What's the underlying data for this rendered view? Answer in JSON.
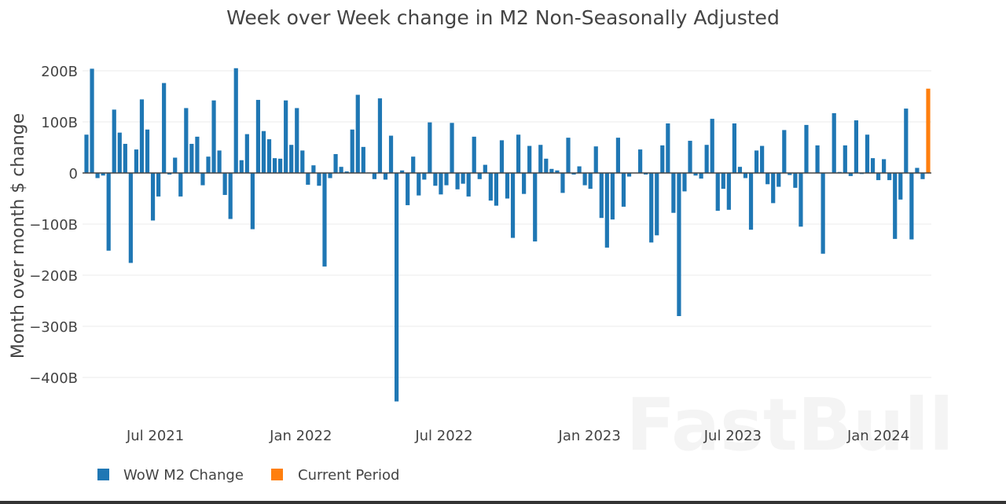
{
  "chart_data": {
    "type": "bar",
    "title": "Week over Week change in M2 Non-Seasonally Adjusted",
    "xlabel": "",
    "ylabel": "Month over month $ change",
    "x_first": "2021-04-05",
    "x_last": "2024-03-04",
    "frequency": "weekly",
    "unit": "B",
    "ylim": [
      -455,
      225
    ],
    "grid": true,
    "legend_position": "bottom-left",
    "y_ticks": [
      {
        "value": 200,
        "label": "200B"
      },
      {
        "value": 100,
        "label": "100B"
      },
      {
        "value": 0,
        "label": "0"
      },
      {
        "value": -100,
        "label": "−100B"
      },
      {
        "value": -200,
        "label": "−200B"
      },
      {
        "value": -300,
        "label": "−300B"
      },
      {
        "value": -400,
        "label": "−400B"
      }
    ],
    "x_ticks": [
      {
        "date": "2021-07-01",
        "label": "Jul 2021"
      },
      {
        "date": "2022-01-01",
        "label": "Jan 2022"
      },
      {
        "date": "2022-07-01",
        "label": "Jul 2022"
      },
      {
        "date": "2023-01-01",
        "label": "Jan 2023"
      },
      {
        "date": "2023-07-01",
        "label": "Jul 2023"
      },
      {
        "date": "2024-01-01",
        "label": "Jan 2024"
      }
    ],
    "series": [
      {
        "name": "WoW M2 Change",
        "color": "#1f77b4",
        "values": [
          75,
          204,
          -10,
          -5,
          -152,
          124,
          79,
          57,
          -176,
          46,
          144,
          85,
          -93,
          -46,
          176,
          -3,
          30,
          -46,
          127,
          57,
          71,
          -24,
          32,
          142,
          44,
          -43,
          -90,
          205,
          25,
          76,
          -110,
          143,
          82,
          66,
          29,
          28,
          142,
          55,
          127,
          44,
          -23,
          15,
          -25,
          -183,
          -10,
          37,
          12,
          3,
          85,
          153,
          51,
          1,
          -12,
          146,
          -13,
          73,
          -447,
          5,
          -63,
          32,
          -44,
          -13,
          99,
          -25,
          -42,
          -24,
          98,
          -32,
          -21,
          -46,
          71,
          -12,
          16,
          -54,
          -64,
          64,
          -50,
          -127,
          75,
          -41,
          53,
          -134,
          55,
          28,
          8,
          5,
          -39,
          69,
          -3,
          13,
          -24,
          -31,
          52,
          -88,
          -146,
          -91,
          69,
          -66,
          -7,
          0,
          46,
          -3,
          -136,
          -122,
          54,
          97,
          -78,
          -280,
          -36,
          63,
          -5,
          -11,
          55,
          106,
          -74,
          -31,
          -72,
          97,
          12,
          -10,
          -111,
          44,
          53,
          -22,
          -59,
          -27,
          84,
          -4,
          -29,
          -105,
          94,
          0,
          54,
          -158,
          0,
          117,
          2,
          54,
          -6,
          103,
          -2,
          75,
          29,
          -14,
          27,
          -14,
          -129,
          -52,
          126,
          -130,
          10,
          -12
        ]
      },
      {
        "name": "Current Period",
        "color": "#ff7f0e",
        "values": [
          165
        ]
      }
    ]
  },
  "watermark": "FastBull"
}
